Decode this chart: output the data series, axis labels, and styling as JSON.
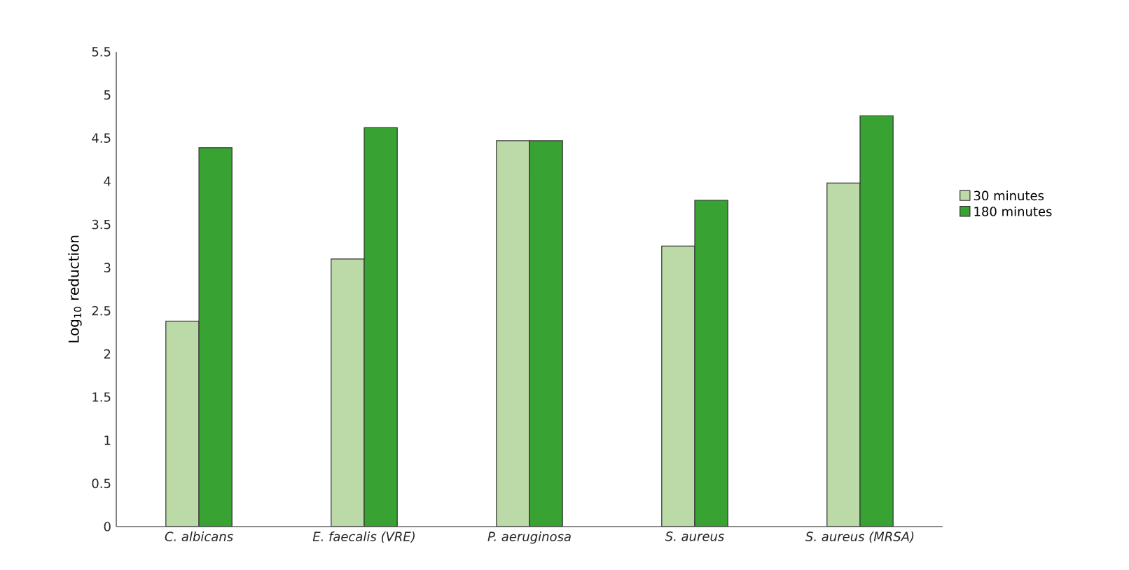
{
  "chart_data": {
    "type": "bar",
    "ylabel": "Log$_{10}$ reduction",
    "categories": [
      "C. albicans",
      "E. faecalis (VRE)",
      "P. aeruginosa",
      "S. aureus",
      "S. aureus (MRSA)"
    ],
    "series": [
      {
        "name": "30 minutes",
        "color": "#bcd9a8",
        "values": [
          2.38,
          3.1,
          4.47,
          3.25,
          3.98
        ]
      },
      {
        "name": "180 minutes",
        "color": "#38a232",
        "values": [
          4.39,
          4.62,
          4.47,
          3.78,
          4.76
        ]
      }
    ],
    "ylim": [
      0,
      5.5
    ],
    "yticks": [
      0,
      0.5,
      1,
      1.5,
      2,
      2.5,
      3,
      3.5,
      4,
      4.5,
      5,
      5.5
    ],
    "legend": "right"
  }
}
